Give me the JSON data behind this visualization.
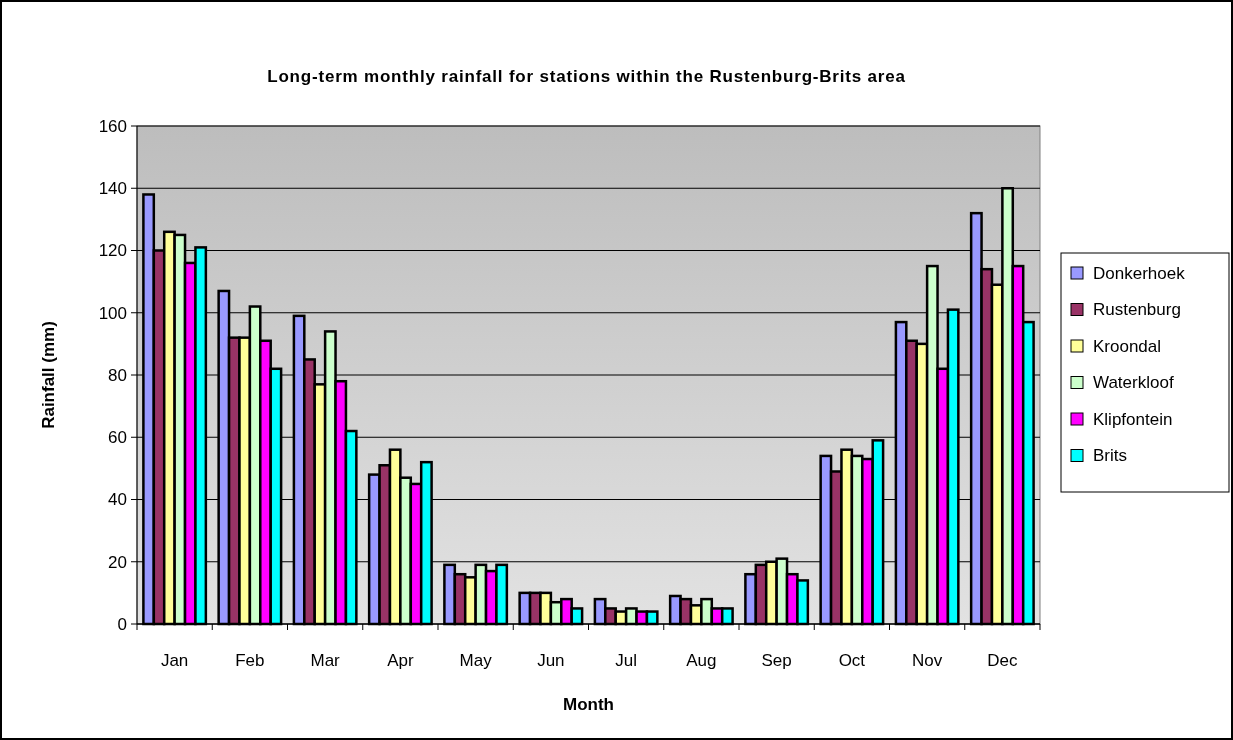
{
  "chart_data": {
    "type": "bar",
    "title": "Long-term monthly rainfall for stations within the Rustenburg-Brits area",
    "xlabel": "Month",
    "ylabel": "Rainfall (mm)",
    "categories": [
      "Jan",
      "Feb",
      "Mar",
      "Apr",
      "May",
      "Jun",
      "Jul",
      "Aug",
      "Sep",
      "Oct",
      "Nov",
      "Dec"
    ],
    "series": [
      {
        "name": "Donkerhoek",
        "color": "#9999ff",
        "values": [
          138,
          107,
          99,
          48,
          19,
          10,
          8,
          9,
          16,
          54,
          97,
          132
        ]
      },
      {
        "name": "Rustenburg",
        "color": "#993366",
        "values": [
          120,
          92,
          85,
          51,
          16,
          10,
          5,
          8,
          19,
          49,
          91,
          114
        ]
      },
      {
        "name": "Kroondal",
        "color": "#ffff99",
        "values": [
          126,
          92,
          77,
          56,
          15,
          10,
          4,
          6,
          20,
          56,
          90,
          109
        ]
      },
      {
        "name": "Waterkloof",
        "color": "#ccffcc",
        "values": [
          125,
          102,
          94,
          47,
          19,
          7,
          5,
          8,
          21,
          54,
          115,
          140
        ]
      },
      {
        "name": "Klipfontein",
        "color": "#ff00ff",
        "values": [
          116,
          91,
          78,
          45,
          17,
          8,
          4,
          5,
          16,
          53,
          82,
          115
        ]
      },
      {
        "name": "Brits",
        "color": "#00ffff",
        "values": [
          121,
          82,
          62,
          52,
          19,
          5,
          4,
          5,
          14,
          59,
          101,
          97
        ]
      }
    ],
    "ylim": [
      0,
      160
    ],
    "yticks": [
      0,
      20,
      40,
      60,
      80,
      100,
      120,
      140,
      160
    ],
    "grid": "y",
    "legend": "right"
  }
}
